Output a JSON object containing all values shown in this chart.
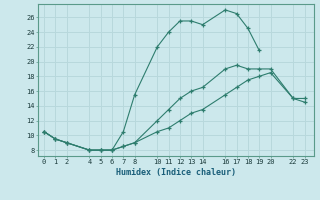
{
  "xlabel": "Humidex (Indice chaleur)",
  "ylabel": "",
  "bg_color": "#cce8ec",
  "grid_color": "#b8d8dc",
  "line_color": "#2e7d6e",
  "xticks": [
    0,
    1,
    2,
    4,
    5,
    6,
    7,
    8,
    10,
    11,
    12,
    13,
    14,
    16,
    17,
    18,
    19,
    20,
    22,
    23
  ],
  "yticks": [
    8,
    10,
    12,
    14,
    16,
    18,
    20,
    22,
    24,
    26
  ],
  "xlim": [
    -0.5,
    23.8
  ],
  "ylim": [
    7.2,
    27.8
  ],
  "series": [
    {
      "x": [
        0,
        1,
        2,
        4,
        5,
        6,
        7,
        8,
        10,
        11,
        12,
        13,
        14,
        16,
        17,
        18,
        19
      ],
      "y": [
        10.5,
        9.5,
        9.0,
        8.0,
        8.0,
        8.0,
        10.5,
        15.5,
        22.0,
        24.0,
        25.5,
        25.5,
        25.0,
        27.0,
        26.5,
        24.5,
        21.5
      ]
    },
    {
      "x": [
        0,
        1,
        2,
        4,
        5,
        6,
        7,
        8,
        10,
        11,
        12,
        13,
        14,
        16,
        17,
        18,
        19,
        20,
        22,
        23
      ],
      "y": [
        10.5,
        9.5,
        9.0,
        8.0,
        8.0,
        8.0,
        8.5,
        9.0,
        12.0,
        13.5,
        15.0,
        16.0,
        16.5,
        19.0,
        19.5,
        19.0,
        19.0,
        19.0,
        15.0,
        15.0
      ]
    },
    {
      "x": [
        0,
        1,
        2,
        4,
        5,
        6,
        7,
        8,
        10,
        11,
        12,
        13,
        14,
        16,
        17,
        18,
        19,
        20,
        22,
        23
      ],
      "y": [
        10.5,
        9.5,
        9.0,
        8.0,
        8.0,
        8.0,
        8.5,
        9.0,
        10.5,
        11.0,
        12.0,
        13.0,
        13.5,
        15.5,
        16.5,
        17.5,
        18.0,
        18.5,
        15.0,
        14.5
      ]
    }
  ]
}
